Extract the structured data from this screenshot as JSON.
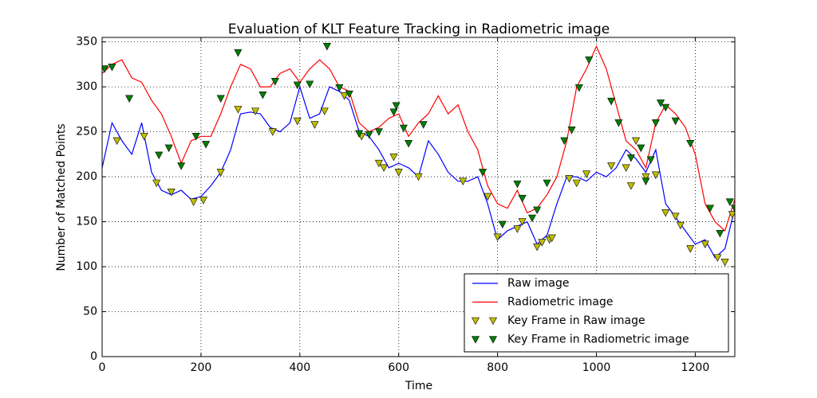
{
  "chart_data": {
    "type": "line",
    "title": "Evaluation of KLT Feature Tracking in Radiometric image",
    "xlabel": "Time",
    "ylabel": "Number of Matched Points",
    "xlim": [
      0,
      1280
    ],
    "xticks": [
      0,
      200,
      400,
      600,
      800,
      1000,
      1200
    ],
    "ylim": [
      0,
      355
    ],
    "yticks": [
      0,
      50,
      100,
      150,
      200,
      250,
      300,
      350
    ],
    "grid": true,
    "legend": "lower right",
    "series": [
      {
        "name": "Raw image",
        "color": "#0000ff",
        "kind": "line",
        "x": [
          0,
          20,
          40,
          60,
          80,
          100,
          120,
          140,
          160,
          180,
          200,
          220,
          240,
          260,
          280,
          300,
          320,
          340,
          360,
          380,
          400,
          420,
          440,
          460,
          480,
          500,
          520,
          540,
          560,
          580,
          600,
          620,
          640,
          660,
          680,
          700,
          720,
          740,
          760,
          780,
          800,
          820,
          840,
          860,
          880,
          900,
          920,
          940,
          960,
          980,
          1000,
          1020,
          1040,
          1060,
          1080,
          1100,
          1120,
          1140,
          1160,
          1180,
          1200,
          1220,
          1240,
          1260,
          1280
        ],
        "values": [
          210,
          260,
          240,
          225,
          260,
          205,
          185,
          180,
          185,
          175,
          178,
          190,
          205,
          230,
          270,
          272,
          270,
          255,
          250,
          260,
          300,
          265,
          270,
          300,
          295,
          285,
          250,
          245,
          230,
          210,
          215,
          210,
          200,
          240,
          225,
          205,
          195,
          195,
          200,
          170,
          130,
          140,
          145,
          150,
          125,
          135,
          170,
          200,
          200,
          195,
          205,
          200,
          210,
          230,
          220,
          205,
          230,
          170,
          155,
          140,
          125,
          130,
          110,
          120,
          165
        ]
      },
      {
        "name": "Radiometric image",
        "color": "#ff0000",
        "kind": "line",
        "x": [
          0,
          20,
          40,
          60,
          80,
          100,
          120,
          140,
          160,
          180,
          200,
          220,
          240,
          260,
          280,
          300,
          320,
          340,
          360,
          380,
          400,
          420,
          440,
          460,
          480,
          500,
          520,
          540,
          560,
          580,
          600,
          620,
          640,
          660,
          680,
          700,
          720,
          740,
          760,
          780,
          800,
          820,
          840,
          860,
          880,
          900,
          920,
          940,
          960,
          980,
          1000,
          1020,
          1040,
          1060,
          1080,
          1100,
          1120,
          1140,
          1160,
          1180,
          1200,
          1220,
          1240,
          1260,
          1280
        ],
        "values": [
          315,
          325,
          330,
          310,
          305,
          285,
          270,
          245,
          215,
          240,
          245,
          245,
          270,
          300,
          325,
          320,
          300,
          300,
          315,
          320,
          305,
          320,
          330,
          320,
          300,
          295,
          260,
          250,
          255,
          265,
          270,
          245,
          260,
          270,
          290,
          270,
          280,
          250,
          230,
          190,
          170,
          165,
          185,
          160,
          165,
          180,
          200,
          240,
          300,
          320,
          345,
          320,
          280,
          240,
          230,
          210,
          260,
          280,
          270,
          255,
          225,
          170,
          150,
          140,
          175
        ]
      },
      {
        "name": "Key Frame in Raw image",
        "color": "#bfbf00",
        "kind": "scatter",
        "x": [
          30,
          85,
          110,
          140,
          185,
          205,
          240,
          275,
          310,
          345,
          395,
          430,
          450,
          490,
          525,
          560,
          570,
          590,
          600,
          640,
          730,
          780,
          800,
          840,
          850,
          880,
          890,
          905,
          910,
          945,
          960,
          980,
          1030,
          1060,
          1070,
          1080,
          1100,
          1120,
          1140,
          1160,
          1170,
          1190,
          1220,
          1245,
          1260,
          1275
        ],
        "values": [
          240,
          245,
          193,
          183,
          172,
          174,
          205,
          275,
          273,
          250,
          262,
          258,
          273,
          290,
          245,
          215,
          210,
          222,
          205,
          200,
          195,
          178,
          133,
          142,
          150,
          122,
          127,
          130,
          132,
          198,
          193,
          203,
          212,
          210,
          190,
          240,
          200,
          202,
          160,
          156,
          146,
          120,
          125,
          110,
          105,
          158
        ]
      },
      {
        "name": "Key Frame in Radiometric image",
        "color": "#008000",
        "kind": "scatter",
        "x": [
          5,
          20,
          55,
          115,
          135,
          160,
          190,
          210,
          240,
          275,
          325,
          350,
          395,
          420,
          455,
          480,
          500,
          520,
          540,
          560,
          590,
          595,
          610,
          620,
          650,
          770,
          810,
          840,
          850,
          870,
          880,
          900,
          935,
          950,
          965,
          985,
          1030,
          1045,
          1070,
          1090,
          1100,
          1110,
          1120,
          1130,
          1140,
          1160,
          1190,
          1230,
          1250,
          1270,
          1280
        ],
        "values": [
          320,
          322,
          287,
          224,
          232,
          212,
          245,
          236,
          287,
          338,
          291,
          306,
          302,
          303,
          345,
          299,
          292,
          248,
          247,
          250,
          272,
          279,
          254,
          237,
          258,
          205,
          147,
          192,
          176,
          154,
          163,
          193,
          240,
          252,
          299,
          330,
          284,
          260,
          221,
          232,
          195,
          219,
          260,
          282,
          277,
          262,
          237,
          165,
          137,
          172,
          165
        ]
      }
    ]
  }
}
